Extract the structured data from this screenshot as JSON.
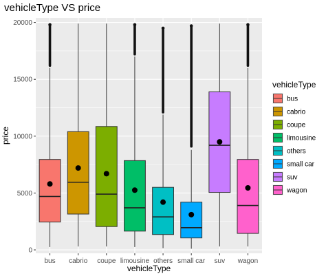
{
  "chart_data": {
    "type": "boxplot",
    "title": "vehicleType VS price",
    "xlabel": "vehicleType",
    "ylabel": "price",
    "ylim": [
      -300,
      20400
    ],
    "yticks": [
      0,
      5000,
      10000,
      15000,
      20000
    ],
    "grid": true,
    "legend": {
      "title": "vehicleType",
      "placement": "right"
    },
    "categories": [
      "bus",
      "cabrio",
      "coupe",
      "limousine",
      "others",
      "small car",
      "suv",
      "wagon"
    ],
    "colors": [
      "#F8766D",
      "#CD9600",
      "#7CAE00",
      "#00BE67",
      "#00BFC4",
      "#00A9FF",
      "#C77CFF",
      "#FF61CC"
    ],
    "boxes": [
      {
        "min": 250,
        "q1": 2450,
        "median": 4700,
        "q3": 7950,
        "max": 16000,
        "mean": 5800,
        "outliers_from": 16200,
        "outliers_to": 19800
      },
      {
        "min": 300,
        "q1": 3150,
        "median": 5950,
        "q3": 10400,
        "max": 19900,
        "mean": 7200,
        "outliers_from": null,
        "outliers_to": null
      },
      {
        "min": 300,
        "q1": 2050,
        "median": 4900,
        "q3": 10850,
        "max": 19900,
        "mean": 6700,
        "outliers_from": null,
        "outliers_to": null
      },
      {
        "min": 250,
        "q1": 1650,
        "median": 3700,
        "q3": 7850,
        "max": 17000,
        "mean": 5250,
        "outliers_from": 17200,
        "outliers_to": 19800
      },
      {
        "min": 150,
        "q1": 1350,
        "median": 2900,
        "q3": 5500,
        "max": 11900,
        "mean": 4200,
        "outliers_from": 12100,
        "outliers_to": 19500
      },
      {
        "min": 100,
        "q1": 1050,
        "median": 1950,
        "q3": 4200,
        "max": 8800,
        "mean": 3100,
        "outliers_from": 9100,
        "outliers_to": 19700
      },
      {
        "min": 300,
        "q1": 5050,
        "median": 9200,
        "q3": 13900,
        "max": 19900,
        "mean": 9500,
        "outliers_from": null,
        "outliers_to": null
      },
      {
        "min": 300,
        "q1": 1450,
        "median": 3900,
        "q3": 7950,
        "max": 16000,
        "mean": 5450,
        "outliers_from": 16200,
        "outliers_to": 19800
      }
    ]
  }
}
